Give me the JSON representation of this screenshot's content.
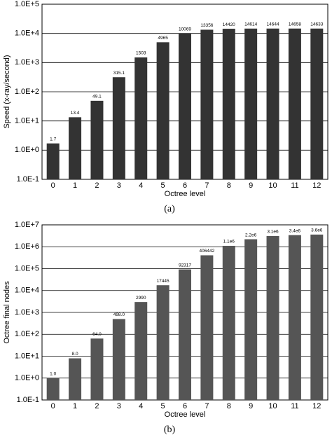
{
  "chart_data": [
    {
      "type": "bar",
      "yscale": "log",
      "grid": true,
      "color": "#333333",
      "ylabel": "Speed  (x-ray/second)",
      "xlabel": "Octree level",
      "caption": "(a)",
      "categories": [
        "0",
        "1",
        "2",
        "3",
        "4",
        "5",
        "6",
        "7",
        "8",
        "9",
        "10",
        "11",
        "12"
      ],
      "values": [
        1.7,
        13.4,
        49.1,
        315.1,
        1503,
        4965,
        10069,
        13356,
        14420,
        14614,
        14644,
        14658,
        14633
      ],
      "ylim": [
        0.1,
        100000
      ],
      "yticks": [
        {
          "value": 0.1,
          "label": "1.0E-1"
        },
        {
          "value": 1,
          "label": "1.0E+0"
        },
        {
          "value": 10,
          "label": "1.0E+1"
        },
        {
          "value": 100,
          "label": "1.0E+2"
        },
        {
          "value": 1000,
          "label": "1.0E+3"
        },
        {
          "value": 10000,
          "label": "1.0E+4"
        },
        {
          "value": 100000,
          "label": "1.0E+5"
        }
      ]
    },
    {
      "type": "bar",
      "yscale": "log",
      "grid": true,
      "color": "#555555",
      "ylabel": "Octree final nodes",
      "xlabel": "Octree level",
      "caption": "(b)",
      "categories": [
        "0",
        "1",
        "2",
        "3",
        "4",
        "5",
        "6",
        "7",
        "8",
        "9",
        "10",
        "11",
        "12"
      ],
      "values": [
        1,
        8,
        64,
        498,
        2990,
        17445,
        92317,
        406442,
        1100000,
        2200000,
        3100000,
        3400000,
        3600000
      ],
      "value_labels": [
        "1.0",
        "8.0",
        "64.0",
        "498.0",
        "2990",
        "17445",
        "92317",
        "406442",
        "1.1e6",
        "2.2e6",
        "3.1e6",
        "3.4e6",
        "3.6e6"
      ],
      "ylim": [
        0.1,
        10000000
      ],
      "yticks": [
        {
          "value": 0.1,
          "label": "1.0E-1"
        },
        {
          "value": 1,
          "label": "1.0E+0"
        },
        {
          "value": 10,
          "label": "1.0E+1"
        },
        {
          "value": 100,
          "label": "1.0E+2"
        },
        {
          "value": 1000,
          "label": "1.0E+3"
        },
        {
          "value": 10000,
          "label": "1.0E+4"
        },
        {
          "value": 100000,
          "label": "1.0E+5"
        },
        {
          "value": 1000000,
          "label": "1.0E+6"
        },
        {
          "value": 10000000,
          "label": "1.0E+7"
        }
      ]
    }
  ]
}
